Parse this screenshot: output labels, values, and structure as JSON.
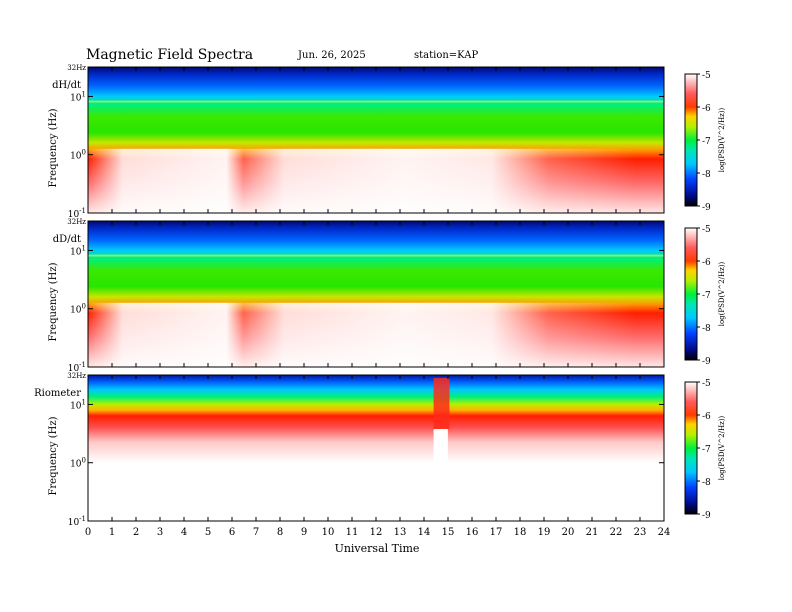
{
  "header": {
    "title": "Magnetic Field Spectra",
    "date": "Jun. 26, 2025",
    "station": "station=KAP"
  },
  "chart_data": {
    "type": "heatmap",
    "xlabel": "Universal Time",
    "x_ticks": [
      "0",
      "1",
      "2",
      "3",
      "4",
      "5",
      "6",
      "7",
      "8",
      "9",
      "10",
      "11",
      "12",
      "13",
      "14",
      "15",
      "16",
      "17",
      "18",
      "19",
      "20",
      "21",
      "22",
      "23",
      "24"
    ],
    "xlim": [
      0,
      24
    ],
    "panels": [
      {
        "name": "dH/dt",
        "ylabel": "Frequency (Hz)",
        "top_label": "32Hz",
        "y_ticks": [
          "10^1",
          "10^0",
          "10^-1"
        ],
        "colorbar": {
          "label": "log(PSD(V^2/Hz))",
          "ticks": [
            "-5",
            "-6",
            "-7",
            "-8",
            "-9"
          ],
          "range": [
            -9,
            -5
          ]
        }
      },
      {
        "name": "dD/dt",
        "ylabel": "Frequency (Hz)",
        "top_label": "32Hz",
        "y_ticks": [
          "10^1",
          "10^0",
          "10^-1"
        ],
        "colorbar": {
          "label": "log(PSD(V^2/Hz))",
          "ticks": [
            "-5",
            "-6",
            "-7",
            "-8",
            "-9"
          ],
          "range": [
            -9,
            -5
          ]
        }
      },
      {
        "name": "Riometer",
        "ylabel": "Frequency (Hz)",
        "top_label": "32Hz",
        "y_ticks": [
          "10^1",
          "10^0",
          "10^-1"
        ],
        "colorbar": {
          "label": "log(PSD(V^2/Hz))",
          "ticks": [
            "-5",
            "-6",
            "-7",
            "-8",
            "-9"
          ],
          "range": [
            -9,
            -5
          ]
        }
      }
    ]
  }
}
